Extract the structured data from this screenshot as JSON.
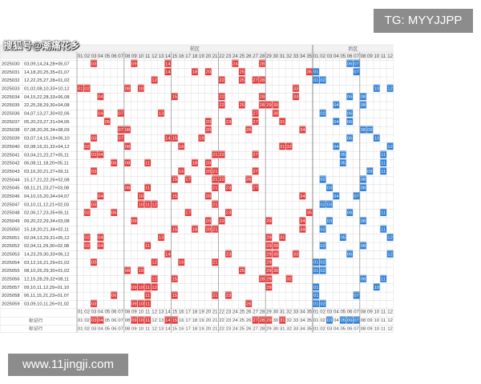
{
  "watermark_top": "TG: MYYJJPP",
  "watermark_bottom": "www.11jingji.com",
  "author_watermark": "搜狐号@潮痛花乡",
  "header": {
    "front_zone": "前区",
    "back_zone": "后区"
  },
  "front_numbers": [
    "01",
    "02",
    "03",
    "04",
    "05",
    "06",
    "07",
    "08",
    "09",
    "10",
    "11",
    "12",
    "13",
    "14",
    "15",
    "16",
    "17",
    "18",
    "19",
    "20",
    "21",
    "22",
    "23",
    "24",
    "25",
    "26",
    "27",
    "28",
    "29",
    "30",
    "31",
    "32",
    "33",
    "34",
    "35"
  ],
  "back_numbers": [
    "01",
    "02",
    "03",
    "04",
    "05",
    "06",
    "07",
    "08",
    "09",
    "10",
    "11",
    "12"
  ],
  "footer_labels": [
    "标记行",
    "标记行"
  ],
  "draws": [
    {
      "issue": "2025030",
      "text": "03,09,14,24,28+06,07",
      "front": [
        3,
        9,
        14,
        24,
        28
      ],
      "back": [
        6,
        7
      ]
    },
    {
      "issue": "2025031",
      "text": "14,18,20,25,35+01,07",
      "front": [
        14,
        18,
        20,
        25,
        35
      ],
      "back": [
        1,
        7
      ]
    },
    {
      "issue": "2025032",
      "text": "12,22,25,27,28+01,02",
      "front": [
        12,
        22,
        25,
        27,
        28
      ],
      "back": [
        1,
        2
      ]
    },
    {
      "issue": "2025033",
      "text": "01,02,08,10,33+10,12",
      "front": [
        1,
        2,
        8,
        10,
        33
      ],
      "back": [
        10,
        12
      ]
    },
    {
      "issue": "2025034",
      "text": "04,15,22,28,33+06,08",
      "front": [
        4,
        15,
        22,
        28,
        33
      ],
      "back": [
        6,
        8
      ]
    },
    {
      "issue": "2025035",
      "text": "22,25,28,29,30+04,08",
      "front": [
        22,
        25,
        28,
        29,
        30
      ],
      "back": [
        4,
        8
      ]
    },
    {
      "issue": "2025036",
      "text": "04,07,13,27,30+02,06",
      "front": [
        4,
        7,
        13,
        27,
        30
      ],
      "back": [
        2,
        6
      ]
    },
    {
      "issue": "2025037",
      "text": "05,20,23,27,31+04,06",
      "front": [
        5,
        20,
        23,
        27,
        31
      ],
      "back": [
        4,
        6
      ]
    },
    {
      "issue": "2025038",
      "text": "07,08,20,26,34+08,09",
      "front": [
        7,
        8,
        20,
        26,
        34
      ],
      "back": [
        8,
        9
      ]
    },
    {
      "issue": "2025039",
      "text": "03,07,14,15,19+06,10",
      "front": [
        3,
        7,
        14,
        15,
        19
      ],
      "back": [
        6,
        10
      ]
    },
    {
      "issue": "2025040",
      "text": "02,08,16,31,32+04,12",
      "front": [
        2,
        8,
        16,
        31,
        32
      ],
      "back": [
        4,
        12
      ]
    },
    {
      "issue": "2025041",
      "text": "03,04,21,22,27+05,11",
      "front": [
        3,
        4,
        21,
        22,
        27
      ],
      "back": [
        5,
        11
      ]
    },
    {
      "issue": "2025042",
      "text": "06,08,11,18,20+05,11",
      "front": [
        6,
        8,
        11,
        18,
        20
      ],
      "back": [
        5,
        11
      ]
    },
    {
      "issue": "2025043",
      "text": "03,16,20,21,27+09,11",
      "front": [
        3,
        16,
        20,
        21,
        27
      ],
      "back": [
        9,
        11
      ]
    },
    {
      "issue": "2025044",
      "text": "15,17,21,22,26+02,08",
      "front": [
        15,
        17,
        21,
        22,
        26
      ],
      "back": [
        2,
        8
      ]
    },
    {
      "issue": "2025045",
      "text": "08,11,21,23,27+03,08",
      "front": [
        8,
        11,
        21,
        23,
        27
      ],
      "back": [
        3,
        8
      ]
    },
    {
      "issue": "2025046",
      "text": "04,10,15,20,34+04,07",
      "front": [
        4,
        10,
        15,
        20,
        34
      ],
      "back": [
        4,
        7
      ]
    },
    {
      "issue": "2025047",
      "text": "03,10,11,12,21+02,03",
      "front": [
        3,
        10,
        11,
        12,
        21
      ],
      "back": [
        2,
        3
      ]
    },
    {
      "issue": "2025048",
      "text": "02,06,17,23,35+06,11",
      "front": [
        2,
        6,
        17,
        23,
        35
      ],
      "back": [
        6,
        11
      ]
    },
    {
      "issue": "2025049",
      "text": "09,20,22,29,34+03,08",
      "front": [
        9,
        20,
        22,
        29,
        34
      ],
      "back": [
        3,
        8
      ]
    },
    {
      "issue": "2025050",
      "text": "15,18,20,21,34+02,11",
      "front": [
        15,
        18,
        20,
        21,
        34
      ],
      "back": [
        2,
        11
      ]
    },
    {
      "issue": "2025051",
      "text": "02,04,13,29,31+05,12",
      "front": [
        2,
        4,
        13,
        29,
        31
      ],
      "back": [
        5,
        12
      ]
    },
    {
      "issue": "2025052",
      "text": "02,04,11,29,30+02,08",
      "front": [
        2,
        4,
        11,
        29,
        30
      ],
      "back": [
        2,
        8
      ]
    },
    {
      "issue": "2025053",
      "text": "14,23,29,30,33+06,12",
      "front": [
        14,
        23,
        29,
        30,
        33
      ],
      "back": [
        6,
        12
      ]
    },
    {
      "issue": "2025054",
      "text": "03,12,16,21,29+01,02",
      "front": [
        3,
        12,
        16,
        21,
        29
      ],
      "back": [
        1,
        2
      ]
    },
    {
      "issue": "2025055",
      "text": "08,10,25,29,30+01,02",
      "front": [
        8,
        10,
        25,
        29,
        30
      ],
      "back": [
        1,
        2
      ]
    },
    {
      "issue": "2025056",
      "text": "12,15,28,29,32+08,11",
      "front": [
        12,
        15,
        28,
        29,
        32
      ],
      "back": [
        8,
        11
      ]
    },
    {
      "issue": "2025057",
      "text": "09,10,11,12,29+01,10",
      "front": [
        9,
        10,
        11,
        12,
        29
      ],
      "back": [
        1,
        10
      ]
    },
    {
      "issue": "2025058",
      "text": "06,11,15,21,23+01,07",
      "front": [
        6,
        11,
        15,
        21,
        23
      ],
      "back": [
        1,
        7
      ]
    },
    {
      "issue": "2025059",
      "text": "03,09,10,11,26+01,02",
      "front": [
        3,
        9,
        10,
        11,
        26
      ],
      "back": [
        1,
        2
      ]
    }
  ],
  "mark_rows": [
    {
      "front": [
        3,
        4,
        9,
        10,
        11,
        14,
        15,
        27,
        28,
        29,
        31
      ],
      "back": [
        3,
        5,
        6,
        7
      ]
    },
    {
      "front": [],
      "back": []
    }
  ],
  "colors": {
    "front_hit": "#e23b3b",
    "back_hit": "#2e7fd6",
    "grid": "#d8d8d8",
    "header_bg": "#f2f2f2"
  }
}
